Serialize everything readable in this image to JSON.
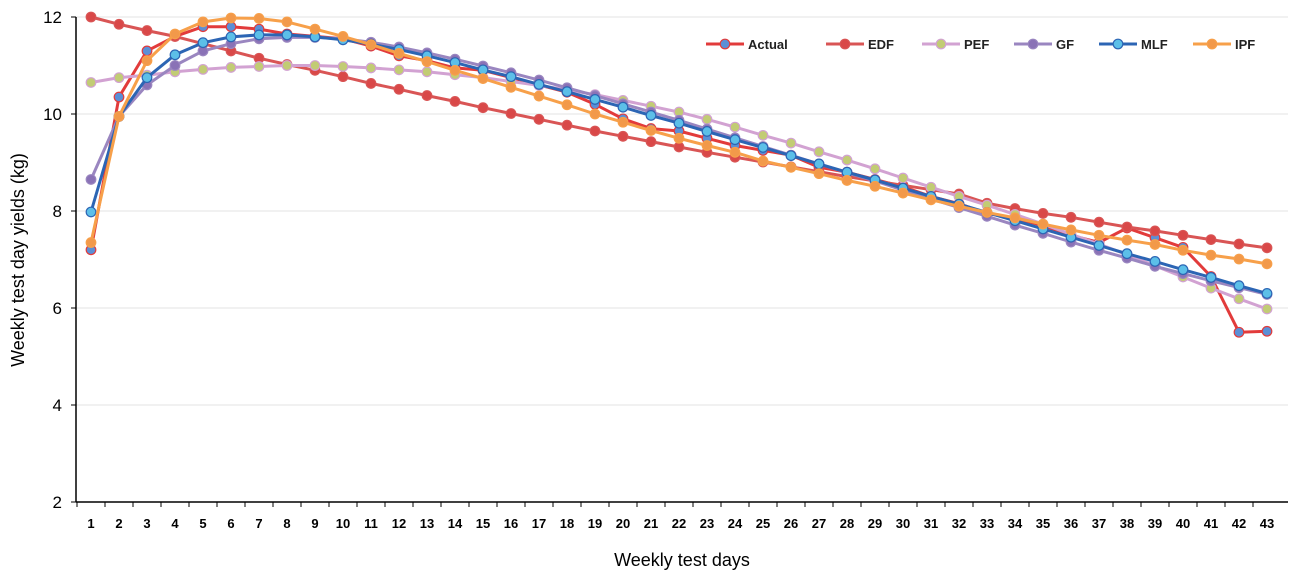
{
  "chart_data": {
    "type": "line",
    "title": "",
    "xlabel": "Weekly test days",
    "ylabel": "Weekly test day yields (kg)",
    "ylim": [
      2,
      12
    ],
    "yticks": [
      2,
      4,
      6,
      8,
      10,
      12
    ],
    "grid": "horizontal",
    "legend_position": "top-right",
    "categories": [
      "1",
      "2",
      "3",
      "4",
      "5",
      "6",
      "7",
      "8",
      "9",
      "10",
      "11",
      "12",
      "13",
      "14",
      "15",
      "16",
      "17",
      "18",
      "19",
      "20",
      "21",
      "22",
      "23",
      "24",
      "25",
      "26",
      "27",
      "28",
      "29",
      "30",
      "31",
      "32",
      "33",
      "34",
      "35",
      "36",
      "37",
      "38",
      "39",
      "40",
      "41",
      "42",
      "43"
    ],
    "series": [
      {
        "name": "Actual",
        "color": "#e23b3b",
        "marker": "#5b8fd6",
        "values": [
          7.2,
          10.35,
          11.3,
          11.6,
          11.8,
          11.8,
          11.75,
          11.65,
          11.6,
          11.55,
          11.4,
          11.2,
          11.1,
          10.95,
          10.9,
          10.75,
          10.6,
          10.45,
          10.2,
          9.9,
          9.7,
          9.65,
          9.5,
          9.35,
          9.25,
          9.15,
          8.9,
          8.8,
          8.65,
          8.5,
          8.3,
          8.15,
          7.95,
          7.85,
          7.7,
          7.5,
          7.35,
          7.65,
          7.45,
          7.25,
          6.65,
          5.5,
          5.52
        ]
      },
      {
        "name": "EDF",
        "color": "#d95555",
        "marker": "#d94848",
        "values": [
          12.0,
          11.85,
          11.72,
          11.6,
          11.45,
          11.3,
          11.15,
          11.02,
          10.9,
          10.77,
          10.63,
          10.51,
          10.38,
          10.26,
          10.13,
          10.01,
          9.89,
          9.77,
          9.65,
          9.54,
          9.43,
          9.32,
          9.21,
          9.11,
          9.01,
          8.91,
          8.81,
          8.71,
          8.62,
          8.53,
          8.44,
          8.35,
          8.16,
          8.05,
          7.95,
          7.87,
          7.77,
          7.67,
          7.59,
          7.5,
          7.41,
          7.32,
          7.24
        ]
      },
      {
        "name": "PEF",
        "color": "#d2a2d2",
        "marker": "#c2cc74",
        "values": [
          10.65,
          10.75,
          10.8,
          10.87,
          10.92,
          10.96,
          10.98,
          11.0,
          11.0,
          10.98,
          10.95,
          10.91,
          10.87,
          10.81,
          10.75,
          10.67,
          10.59,
          10.5,
          10.4,
          10.28,
          10.16,
          10.04,
          9.89,
          9.73,
          9.56,
          9.4,
          9.22,
          9.05,
          8.87,
          8.68,
          8.49,
          8.3,
          8.12,
          7.93,
          7.73,
          7.52,
          7.32,
          7.1,
          6.87,
          6.64,
          6.41,
          6.19,
          5.98
        ]
      },
      {
        "name": "GF",
        "color": "#9a86c0",
        "marker": "#8a72b6",
        "values": [
          8.65,
          9.95,
          10.6,
          11.0,
          11.3,
          11.45,
          11.55,
          11.58,
          11.58,
          11.55,
          11.48,
          11.38,
          11.26,
          11.13,
          10.99,
          10.85,
          10.7,
          10.54,
          10.38,
          10.21,
          10.04,
          9.87,
          9.69,
          9.51,
          9.33,
          9.15,
          8.97,
          8.79,
          8.62,
          8.43,
          8.25,
          8.07,
          7.89,
          7.71,
          7.54,
          7.36,
          7.19,
          7.03,
          6.86,
          6.71,
          6.56,
          6.42,
          6.28
        ]
      },
      {
        "name": "MLF",
        "color": "#2c65b4",
        "marker": "#5cbfe8",
        "values": [
          7.98,
          9.95,
          10.75,
          11.22,
          11.47,
          11.59,
          11.63,
          11.63,
          11.59,
          11.53,
          11.44,
          11.33,
          11.2,
          11.06,
          10.91,
          10.77,
          10.61,
          10.46,
          10.3,
          10.14,
          9.97,
          9.81,
          9.64,
          9.47,
          9.31,
          9.14,
          8.97,
          8.8,
          8.64,
          8.47,
          8.3,
          8.14,
          7.97,
          7.8,
          7.63,
          7.46,
          7.29,
          7.12,
          6.96,
          6.79,
          6.63,
          6.46,
          6.3
        ]
      },
      {
        "name": "IPF",
        "color": "#f7a04a",
        "marker": "#f2994a",
        "values": [
          7.35,
          9.95,
          11.1,
          11.65,
          11.9,
          11.98,
          11.97,
          11.9,
          11.75,
          11.6,
          11.43,
          11.25,
          11.08,
          10.9,
          10.73,
          10.55,
          10.37,
          10.19,
          10.0,
          9.83,
          9.66,
          9.5,
          9.35,
          9.21,
          9.03,
          8.9,
          8.77,
          8.63,
          8.51,
          8.37,
          8.23,
          8.1,
          7.97,
          7.86,
          7.73,
          7.61,
          7.5,
          7.4,
          7.31,
          7.19,
          7.09,
          7.01,
          6.91
        ]
      }
    ]
  }
}
